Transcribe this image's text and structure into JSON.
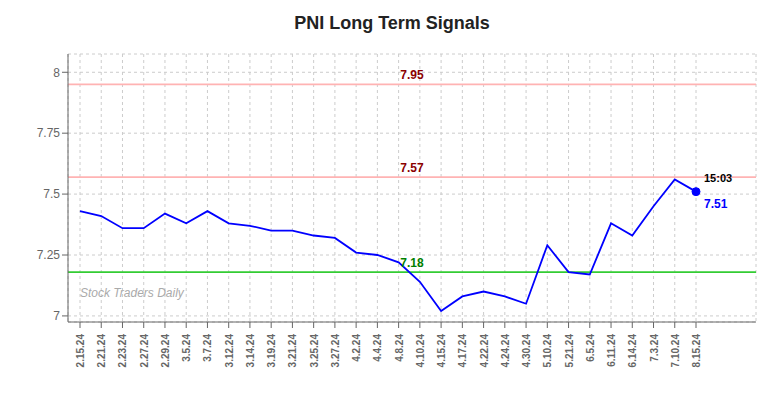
{
  "chart_data": {
    "type": "line",
    "title": "PNI Long Term Signals",
    "watermark": "Stock Traders Daily",
    "categories": [
      "2.15.24",
      "2.21.24",
      "2.23.24",
      "2.27.24",
      "2.29.24",
      "3.5.24",
      "3.7.24",
      "3.12.24",
      "3.14.24",
      "3.19.24",
      "3.21.24",
      "3.25.24",
      "3.27.24",
      "4.2.24",
      "4.4.24",
      "4.8.24",
      "4.10.24",
      "4.15.24",
      "4.17.24",
      "4.22.24",
      "4.24.24",
      "4.30.24",
      "5.10.24",
      "5.21.24",
      "6.5.24",
      "6.11.24",
      "6.14.24",
      "7.3.24",
      "7.10.24",
      "8.15.24"
    ],
    "values": [
      7.43,
      7.41,
      7.36,
      7.36,
      7.42,
      7.38,
      7.43,
      7.38,
      7.37,
      7.35,
      7.35,
      7.33,
      7.32,
      7.26,
      7.25,
      7.22,
      7.14,
      7.02,
      7.08,
      7.1,
      7.08,
      7.05,
      7.29,
      7.18,
      7.17,
      7.38,
      7.33,
      7.45,
      7.56,
      7.51
    ],
    "color": "blue",
    "ylim": [
      6.975,
      8.075
    ],
    "yticks": [
      7,
      7.25,
      7.5,
      7.75,
      8
    ],
    "grid": true,
    "hlines": [
      {
        "value": 7.95,
        "color": "#ffb3b3",
        "label": "7.95",
        "label_color": "darkred"
      },
      {
        "value": 7.57,
        "color": "#ffb3b3",
        "label": "7.57",
        "label_color": "darkred"
      },
      {
        "value": 7.18,
        "color": "#33cc33",
        "label": "7.18",
        "label_color": "green"
      }
    ],
    "annotations": [
      {
        "text": "15:03",
        "x": "8.15.24",
        "y": 7.51,
        "position": "above",
        "color": "black"
      },
      {
        "text": "7.51",
        "x": "8.15.24",
        "y": 7.51,
        "position": "below",
        "color": "blue"
      }
    ]
  }
}
